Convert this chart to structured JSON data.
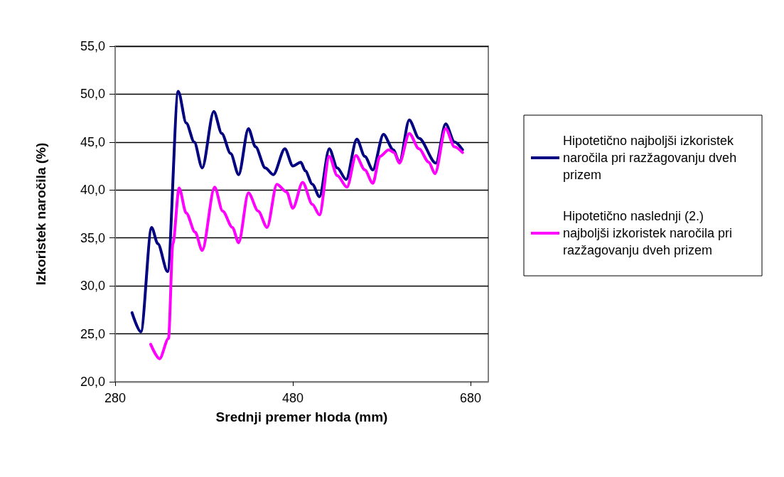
{
  "chart_data": {
    "type": "line",
    "xlabel": "Srednji premer hloda (mm)",
    "ylabel": "Izkoristek naročila (%)",
    "xlim": [
      280,
      700
    ],
    "xticks": [
      280,
      480,
      680
    ],
    "ylim": [
      20,
      55
    ],
    "yticks": [
      {
        "value": 20,
        "label": "20,0"
      },
      {
        "value": 25,
        "label": "25,0"
      },
      {
        "value": 30,
        "label": "30,0"
      },
      {
        "value": 35,
        "label": "35,0"
      },
      {
        "value": 40,
        "label": "40,0"
      },
      {
        "value": 45,
        "label": "45,0"
      },
      {
        "value": 50,
        "label": "50,0"
      },
      {
        "value": 55,
        "label": "55,0"
      }
    ],
    "grid": "y",
    "legend": "right",
    "marker": "none",
    "line_style": "solid",
    "series": [
      {
        "name": "Hipotetično najboljši izkoristek naročila pri razžagovanju dveh prizem",
        "color": "#000080",
        "x": [
          299,
          309,
          321,
          328,
          339,
          351,
          360,
          369,
          378,
          391,
          400,
          410,
          419,
          430,
          438,
          449,
          458,
          471,
          480,
          489,
          494,
          502,
          510,
          521,
          530,
          540,
          552,
          561,
          570,
          582,
          593,
          600,
          611,
          622,
          641,
          652,
          662,
          671
        ],
        "values": [
          27.2,
          25.2,
          36.1,
          34.4,
          31.5,
          50.3,
          47.0,
          45.0,
          42.3,
          48.2,
          45.9,
          43.8,
          41.6,
          46.4,
          44.5,
          42.3,
          41.6,
          44.3,
          42.5,
          42.9,
          42.0,
          40.6,
          39.3,
          44.3,
          42.3,
          41.1,
          45.3,
          43.5,
          42.1,
          45.8,
          44.2,
          42.9,
          47.3,
          45.4,
          42.8,
          46.9,
          45.0,
          44.2
        ]
      },
      {
        "name": "Hipotetično naslednji (2.) najboljši izkoristek naročila pri razžagovanju dveh prizem",
        "color": "#ff00ff",
        "x": [
          320,
          330,
          340,
          345,
          352,
          360,
          370,
          378,
          392,
          401,
          412,
          419,
          430,
          441,
          451,
          462,
          473,
          480,
          491,
          502,
          510,
          521,
          530,
          541,
          551,
          561,
          570,
          578,
          588,
          594,
          600,
          611,
          622,
          633,
          640,
          652,
          662,
          671
        ],
        "values": [
          23.9,
          22.4,
          24.5,
          34.4,
          40.2,
          37.6,
          35.6,
          33.7,
          40.3,
          37.8,
          36.1,
          34.5,
          39.7,
          37.8,
          36.1,
          40.6,
          39.8,
          38.1,
          40.8,
          38.5,
          37.4,
          43.5,
          41.5,
          40.3,
          43.6,
          42.1,
          40.7,
          43.5,
          44.2,
          43.9,
          42.8,
          45.9,
          44.3,
          42.9,
          41.7,
          46.4,
          44.5,
          43.9
        ]
      }
    ]
  }
}
